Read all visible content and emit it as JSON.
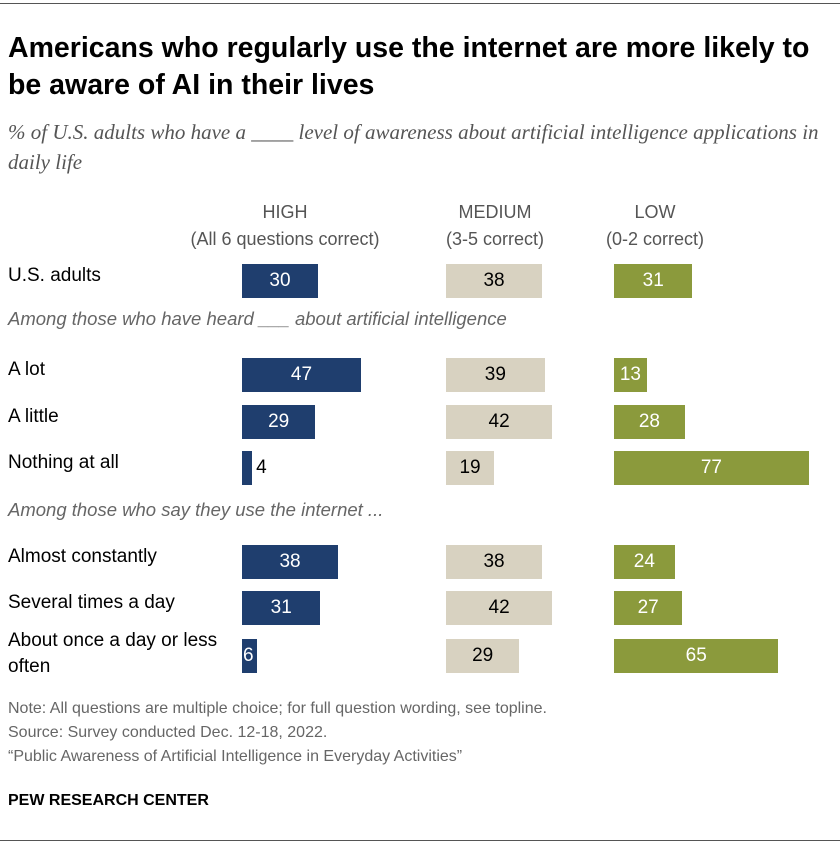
{
  "title": "Americans who regularly use the internet are more likely to be aware of AI in their lives",
  "subtitle": "% of U.S. adults who have a ____ level of awareness about artificial intelligence applications in daily life",
  "colors": {
    "high": "#1f3e6e",
    "medium": "#d8d2c1",
    "low": "#8b9a3c"
  },
  "chart_data": {
    "type": "bar",
    "series": [
      {
        "name": "HIGH",
        "sub": "(All 6 questions correct)"
      },
      {
        "name": "MEDIUM",
        "sub": "(3-5 correct)"
      },
      {
        "name": "LOW",
        "sub": "(0-2 correct)"
      }
    ],
    "groups": [
      {
        "heading": "",
        "rows": [
          {
            "label": "U.S. adults",
            "values": [
              30,
              38,
              31
            ]
          }
        ]
      },
      {
        "heading": "Among those who have heard ___ about artificial intelligence",
        "rows": [
          {
            "label": "A lot",
            "values": [
              47,
              39,
              13
            ]
          },
          {
            "label": "A little",
            "values": [
              29,
              42,
              28
            ]
          },
          {
            "label": "Nothing at all",
            "values": [
              4,
              19,
              77
            ]
          }
        ]
      },
      {
        "heading": "Among those who say they use the internet ...",
        "rows": [
          {
            "label": "Almost constantly",
            "values": [
              38,
              38,
              24
            ]
          },
          {
            "label": "Several times a day",
            "values": [
              31,
              42,
              27
            ]
          },
          {
            "label": "About once a day or less often",
            "values": [
              6,
              29,
              65
            ]
          }
        ]
      }
    ]
  },
  "notes": {
    "note": "Note: All questions are multiple choice; for full question wording, see topline.",
    "source": "Source: Survey conducted Dec. 12-18, 2022.",
    "report": "“Public Awareness of Artificial Intelligence in Everyday Activities”"
  },
  "brand": "PEW RESEARCH CENTER"
}
